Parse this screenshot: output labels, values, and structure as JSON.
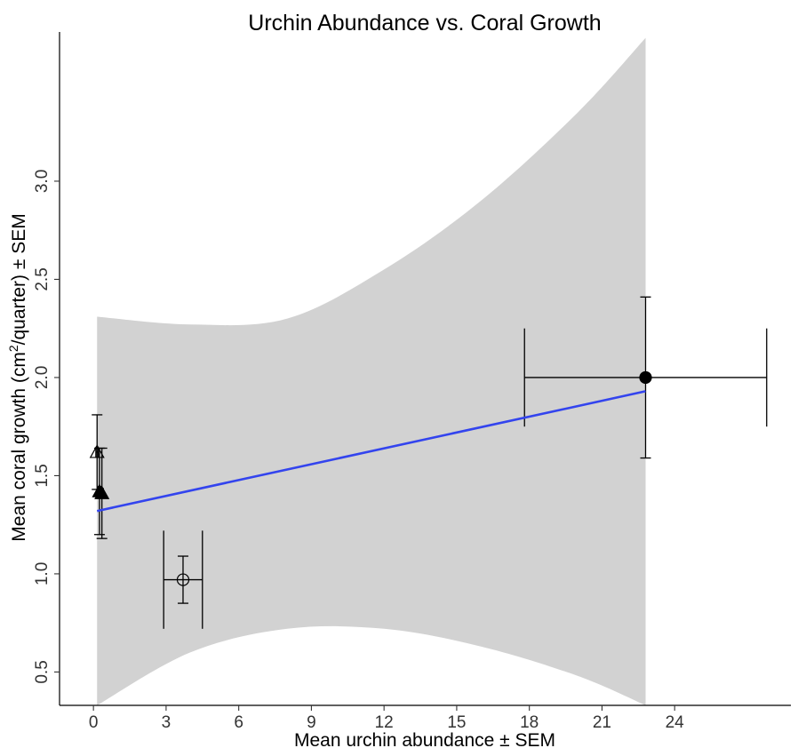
{
  "chart_data": {
    "type": "scatter",
    "title": "Urchin Abundance vs. Coral Growth",
    "xlabel": "Mean urchin abundance ± SEM",
    "ylabel_main": "Mean coral growth (cm",
    "ylabel_sup": "2",
    "ylabel_tail": "/quarter) ± SEM",
    "xlim": [
      -1.4,
      28.8
    ],
    "ylim": [
      0.33,
      3.76
    ],
    "x_ticks": [
      0,
      3,
      6,
      9,
      12,
      15,
      18,
      21,
      24
    ],
    "x_tick_labels": [
      "0",
      "3",
      "6",
      "9",
      "12",
      "15",
      "18",
      "21",
      "24"
    ],
    "y_ticks": [
      0.5,
      1.0,
      1.5,
      2.0,
      2.5,
      3.0
    ],
    "y_tick_labels": [
      "0.5",
      "1.0",
      "1.5",
      "2.0",
      "2.5",
      "3.0"
    ],
    "grid": false,
    "points": [
      {
        "name": "open-triangle",
        "shape": "triangle",
        "filled": false,
        "x": 0.15,
        "y": 1.62,
        "xerr": 0.05,
        "yerr": 0.19
      },
      {
        "name": "filled-triangle-a",
        "shape": "triangle",
        "filled": true,
        "x": 0.25,
        "y": 1.42,
        "xerr": 0.05,
        "yerr": 0.22
      },
      {
        "name": "filled-triangle-b",
        "shape": "triangle",
        "filled": true,
        "x": 0.35,
        "y": 1.41,
        "xerr": 0.06,
        "yerr": 0.23
      },
      {
        "name": "open-circle",
        "shape": "circle",
        "filled": false,
        "x": 3.7,
        "y": 0.97,
        "xerr": 0.8,
        "yerr": 0.12,
        "yerr_outer": 0.25
      },
      {
        "name": "filled-circle",
        "shape": "circle",
        "filled": true,
        "x": 22.8,
        "y": 2.0,
        "xerr": 5.0,
        "yerr": 0.41,
        "xerr_cap_half": 0.25
      }
    ],
    "fit": {
      "color": "#3344ee",
      "line": [
        [
          0.15,
          1.32
        ],
        [
          22.8,
          1.93
        ]
      ],
      "ribbon_color": "#d2d2d2",
      "ribbon_upper": [
        [
          0.15,
          2.31
        ],
        [
          4,
          2.27
        ],
        [
          8,
          2.3
        ],
        [
          12,
          2.55
        ],
        [
          16,
          2.9
        ],
        [
          20,
          3.35
        ],
        [
          22.8,
          3.73
        ]
      ],
      "ribbon_lower": [
        [
          0.15,
          0.33
        ],
        [
          4,
          0.6
        ],
        [
          8,
          0.72
        ],
        [
          12,
          0.72
        ],
        [
          16,
          0.63
        ],
        [
          20,
          0.48
        ],
        [
          22.8,
          0.33
        ]
      ]
    }
  }
}
